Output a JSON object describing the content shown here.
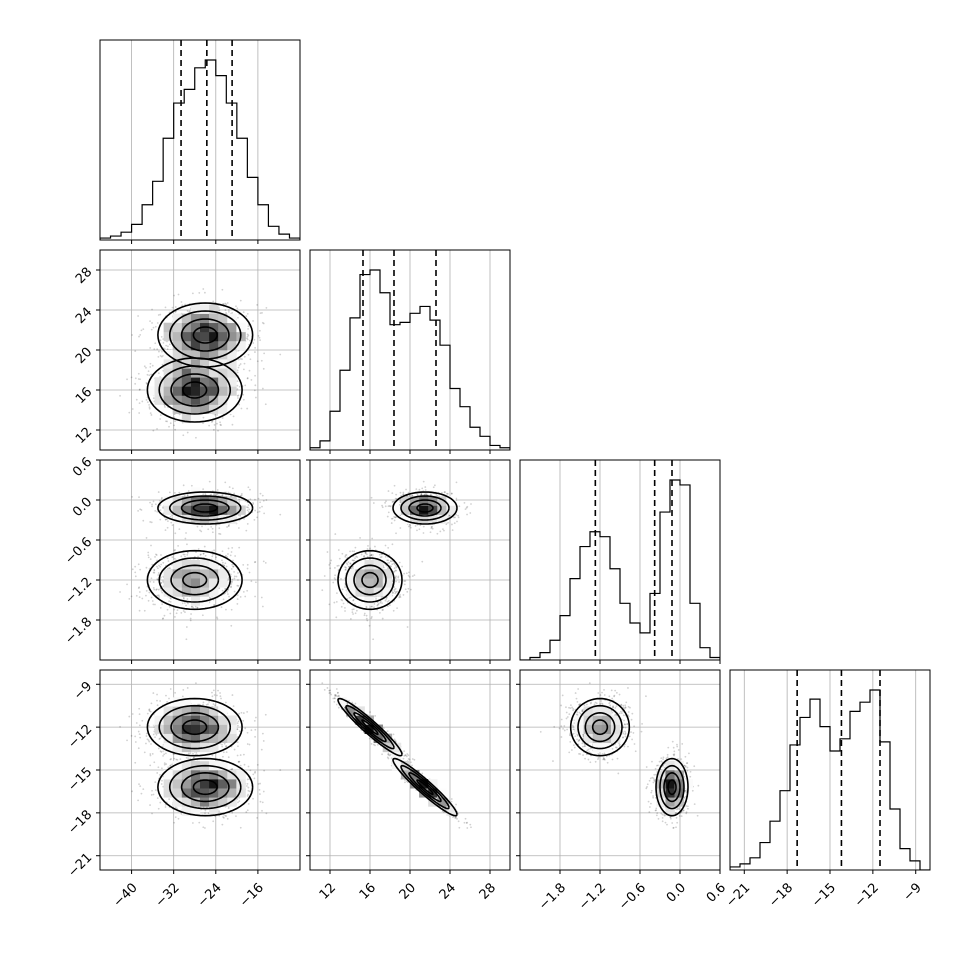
{
  "chart_data": {
    "type": "corner",
    "parameters": [
      {
        "id": "p0",
        "range": [
          -46,
          -8
        ],
        "ticks": [
          -40,
          -32,
          -24,
          -16
        ],
        "tick_labels": [
          "−40",
          "−32",
          "−24",
          "−16"
        ]
      },
      {
        "id": "p1",
        "range": [
          10,
          30
        ],
        "ticks": [
          12,
          16,
          20,
          24,
          28
        ],
        "tick_labels": [
          "12",
          "16",
          "20",
          "24",
          "28"
        ]
      },
      {
        "id": "p2",
        "range": [
          -2.4,
          0.6
        ],
        "ticks": [
          -1.8,
          -1.2,
          -0.6,
          0.0,
          0.6
        ],
        "tick_labels": [
          "−1.8",
          "−1.2",
          "−0.6",
          "0.0",
          "0.6"
        ]
      },
      {
        "id": "p3",
        "range": [
          -22,
          -8
        ],
        "ticks": [
          -21,
          -18,
          -15,
          -12,
          -9
        ],
        "tick_labels": [
          "−21",
          "−18",
          "−15",
          "−12",
          "−9"
        ]
      }
    ],
    "histograms": [
      {
        "parameter": "p0",
        "bin_edges": [
          -46,
          -44,
          -42,
          -40,
          -38,
          -36,
          -34,
          -32,
          -30,
          -28,
          -26,
          -24,
          -22,
          -20,
          -18,
          -16,
          -14,
          -12,
          -10,
          -8
        ],
        "counts": [
          1,
          2,
          4,
          8,
          18,
          30,
          52,
          70,
          77,
          88,
          92,
          84,
          70,
          52,
          32,
          18,
          7,
          3,
          1
        ],
        "quantiles": [
          -30.6,
          -25.7,
          -20.9
        ]
      },
      {
        "parameter": "p1",
        "bin_edges": [
          10,
          11,
          12,
          13,
          14,
          15,
          16,
          17,
          18,
          19,
          20,
          21,
          22,
          23,
          24,
          25,
          26,
          27,
          28,
          29,
          30
        ],
        "counts": [
          1,
          4,
          17,
          35,
          58,
          77,
          79,
          69,
          55,
          56,
          60,
          63,
          57,
          46,
          27,
          19,
          10,
          6,
          2,
          1
        ],
        "quantiles": [
          15.3,
          18.4,
          22.6
        ]
      },
      {
        "parameter": "p2",
        "bin_edges": [
          -2.4,
          -2.25,
          -2.1,
          -1.95,
          -1.8,
          -1.65,
          -1.5,
          -1.35,
          -1.2,
          -1.05,
          -0.9,
          -0.75,
          -0.6,
          -0.45,
          -0.3,
          -0.15,
          0.0,
          0.15,
          0.3,
          0.45,
          0.6
        ],
        "counts": [
          0,
          1,
          3,
          8,
          18,
          33,
          46,
          52,
          50,
          37,
          23,
          15,
          11,
          27,
          60,
          73,
          71,
          23,
          5,
          1
        ],
        "quantiles": [
          -1.27,
          -0.38,
          -0.12
        ]
      },
      {
        "parameter": "p3",
        "bin_edges": [
          -22,
          -21.3,
          -20.6,
          -19.9,
          -19.2,
          -18.5,
          -17.8,
          -17.1,
          -16.4,
          -15.7,
          -15,
          -14.3,
          -13.6,
          -12.9,
          -12.2,
          -11.5,
          -10.8,
          -10.1,
          -9.4,
          -8.7,
          -8
        ],
        "counts": [
          1,
          2,
          4,
          9,
          16,
          26,
          41,
          50,
          56,
          47,
          39,
          43,
          52,
          55,
          59,
          42,
          20,
          7,
          3,
          0
        ],
        "quantiles": [
          -17.3,
          -14.2,
          -11.5
        ]
      }
    ],
    "modes": [
      {
        "mean": [
          -28.0,
          16.0,
          -1.2,
          -12.0
        ],
        "std": [
          4.5,
          1.6,
          0.22,
          1.0
        ],
        "weight": 0.5
      },
      {
        "mean": [
          -26.0,
          21.5,
          -0.12,
          -16.2
        ],
        "std": [
          4.5,
          1.6,
          0.12,
          1.0
        ],
        "weight": 0.5
      }
    ]
  }
}
